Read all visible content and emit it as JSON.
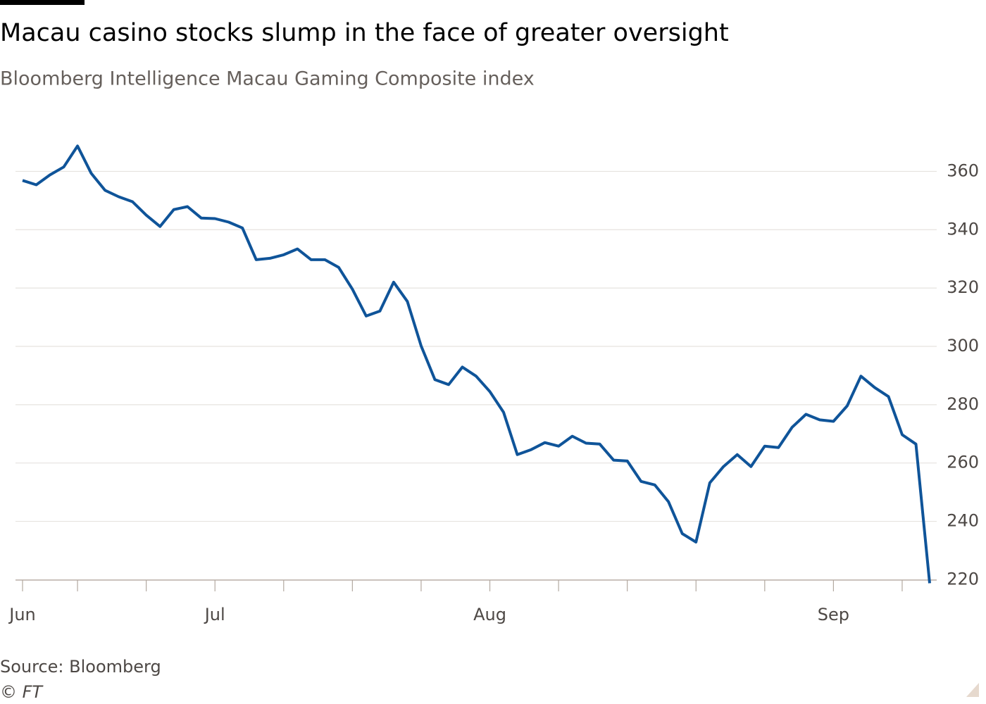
{
  "chart_data": {
    "type": "line",
    "title": "Macau casino stocks slump in the face of greater oversight",
    "subtitle": "Bloomberg Intelligence Macau Gaming Composite index",
    "source": "Source: Bloomberg",
    "copyright": "© FT",
    "categories": [
      "Jun",
      null,
      null,
      null,
      null,
      null,
      null,
      null,
      null,
      null,
      null,
      null,
      null,
      null,
      "Jul",
      null,
      null,
      null,
      null,
      null,
      null,
      null,
      null,
      null,
      null,
      null,
      null,
      null,
      null,
      null,
      null,
      null,
      null,
      null,
      "Aug",
      null,
      null,
      null,
      null,
      null,
      null,
      null,
      null,
      null,
      null,
      null,
      null,
      null,
      null,
      null,
      null,
      null,
      null,
      null,
      null,
      null,
      null,
      null,
      null,
      "Sep",
      null,
      null,
      null,
      null,
      null,
      null,
      null
    ],
    "series": [
      {
        "name": "Bloomberg Intelligence Macau Gaming Composite index",
        "color": "#0f5499",
        "values": [
          356.9,
          355.4,
          358.8,
          361.5,
          368.7,
          359.3,
          353.5,
          351.3,
          349.6,
          345.0,
          341.1,
          346.9,
          347.9,
          344.0,
          343.8,
          342.6,
          340.6,
          329.7,
          330.2,
          331.4,
          333.4,
          329.7,
          329.7,
          327.1,
          319.6,
          310.4,
          312.1,
          322.0,
          315.4,
          300.2,
          288.6,
          286.9,
          292.9,
          289.8,
          284.5,
          277.4,
          262.9,
          264.6,
          267.0,
          265.8,
          269.2,
          266.8,
          266.5,
          261.0,
          260.7,
          253.7,
          252.5,
          246.7,
          235.8,
          232.9,
          253.2,
          258.8,
          262.9,
          258.8,
          265.8,
          265.3,
          272.3,
          276.7,
          274.8,
          274.3,
          279.6,
          289.8,
          285.9,
          282.8,
          269.7,
          266.5,
          218.8
        ]
      }
    ],
    "ylim": [
      219.5,
      372
    ],
    "yticks": [
      220,
      240,
      260,
      280,
      300,
      320,
      340,
      360
    ],
    "grid": true
  }
}
